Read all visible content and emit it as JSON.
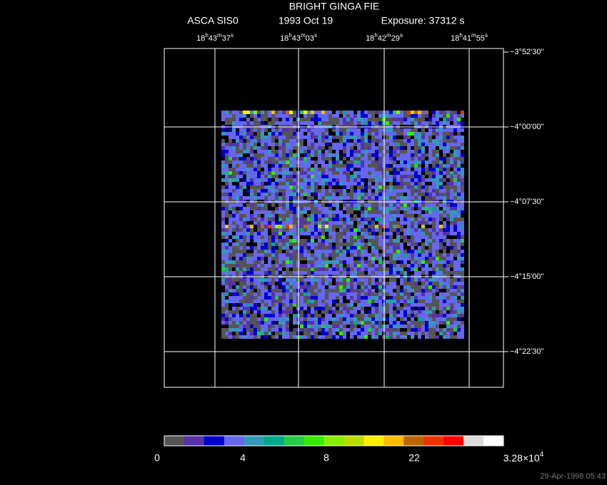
{
  "header": {
    "title": "BRIGHT GINGA FIE",
    "instrument": "ASCA SIS0",
    "date": "1993 Oct 19",
    "exposure": "Exposure: 37312 s"
  },
  "ra_labels": [
    [
      "18",
      "h",
      "43",
      "m",
      "37",
      "s"
    ],
    [
      "18",
      "h",
      "43",
      "m",
      "03",
      "s"
    ],
    [
      "18",
      "h",
      "42",
      "m",
      "29",
      "s"
    ],
    [
      "18",
      "h",
      "41",
      "m",
      "55",
      "s"
    ]
  ],
  "dec_labels": [
    "−3°52'30\"",
    "−4°00'00\"",
    "−4°07'30\"",
    "−4°15'00\"",
    "−4°22'30\""
  ],
  "colorbar": {
    "colors": [
      "#555555",
      "#5533aa",
      "#0000cc",
      "#6666ee",
      "#3399bb",
      "#00aa88",
      "#22cc44",
      "#33ee00",
      "#88ee00",
      "#bbdd00",
      "#ffee00",
      "#ffbb00",
      "#bb6600",
      "#ee3300",
      "#ff0000",
      "#dddddd",
      "#ffffff"
    ],
    "labels": [
      "0",
      "4",
      "8",
      "22"
    ],
    "max_label": {
      "mantissa": "3.28×10",
      "exponent": "4"
    }
  },
  "timestamp": "29-Apr-1998 05:43"
}
